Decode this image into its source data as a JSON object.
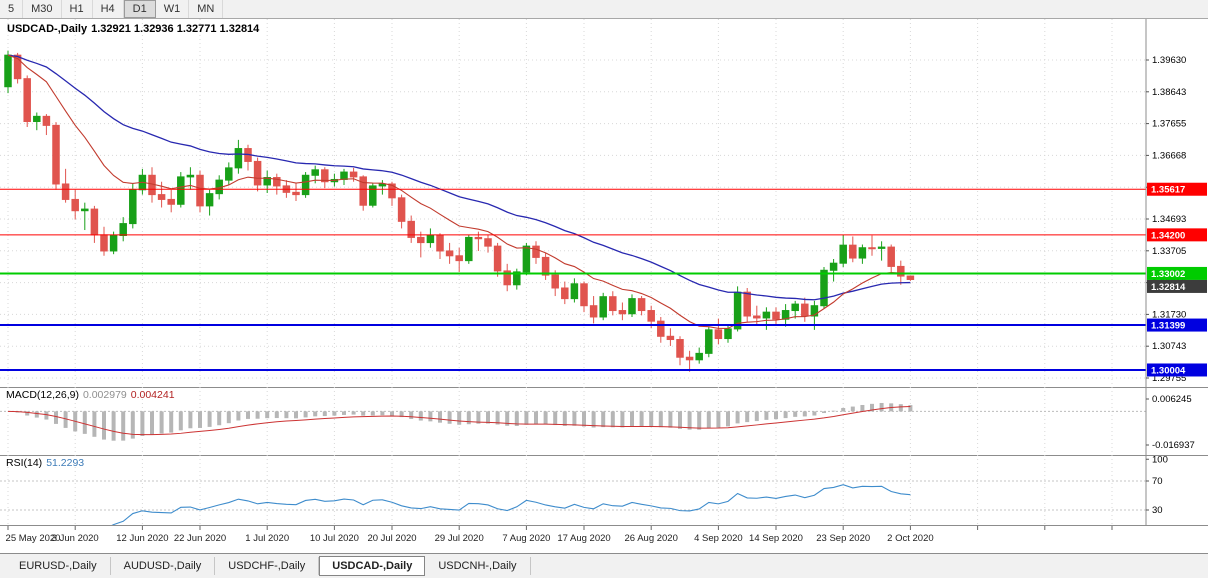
{
  "toolbar": {
    "timeframes": [
      "5",
      "M30",
      "H1",
      "H4",
      "D1",
      "W1",
      "MN"
    ],
    "active": "D1"
  },
  "chart": {
    "symbol_label": "USDCAD-,Daily",
    "ohlc_text": "1.32921 1.32936 1.32771 1.32814",
    "open": "1.32921",
    "high": "1.32936",
    "low": "1.32771",
    "close": "1.32814"
  },
  "macd": {
    "name": "MACD(12,26,9)",
    "value_main": "0.002979",
    "value_signal": "0.004241"
  },
  "rsi": {
    "name": "RSI(14)",
    "value": "51.2293"
  },
  "tabs": [
    {
      "label": "EURUSD-,Daily",
      "active": false
    },
    {
      "label": "AUDUSD-,Daily",
      "active": false
    },
    {
      "label": "USDCHF-,Daily",
      "active": false
    },
    {
      "label": "USDCAD-,Daily",
      "active": true
    },
    {
      "label": "USDCNH-,Daily",
      "active": false
    }
  ],
  "chart_data": {
    "type": "candlestick",
    "title": "USDCAD-,Daily",
    "symbol": "USDCAD",
    "timeframe": "Daily",
    "price_axis": [
      "1.39630",
      "1.38643",
      "1.37655",
      "1.36668",
      "1.35680",
      "1.34693",
      "1.33705",
      "1.32718",
      "1.31730",
      "1.30743",
      "1.29755"
    ],
    "time_labels": [
      [
        "25 May 2020",
        0
      ],
      [
        "3 Jun 2020",
        7
      ],
      [
        "12 Jun 2020",
        14
      ],
      [
        "22 Jun 2020",
        20
      ],
      [
        "1 Jul 2020",
        27
      ],
      [
        "10 Jul 2020",
        34
      ],
      [
        "20 Jul 2020",
        40
      ],
      [
        "29 Jul 2020",
        47
      ],
      [
        "7 Aug 2020",
        54
      ],
      [
        "17 Aug 2020",
        60
      ],
      [
        "26 Aug 2020",
        67
      ],
      [
        "4 Sep 2020",
        74
      ],
      [
        "14 Sep 2020",
        80
      ],
      [
        "23 Sep 2020",
        87
      ],
      [
        "2 Oct 2020",
        94
      ]
    ],
    "hlines": [
      {
        "price": 1.35617,
        "label": "1.35617",
        "color": "#ff0000",
        "width": 1
      },
      {
        "price": 1.342,
        "label": "1.34200",
        "color": "#ff0000",
        "width": 1
      },
      {
        "price": 1.33002,
        "label": "1.33002",
        "color": "#00cc00",
        "width": 2
      },
      {
        "price": 1.31399,
        "label": "1.31399",
        "color": "#0000e0",
        "width": 2
      },
      {
        "price": 1.30004,
        "label": "1.30004",
        "color": "#0000e0",
        "width": 2
      }
    ],
    "current": {
      "price": 1.32814,
      "label": "1.32814",
      "color": "#3c3c3c"
    },
    "indicators": {
      "macd": {
        "fast": 12,
        "slow": 26,
        "signal": 9,
        "value": 0.002979,
        "signal_value": 0.004241
      },
      "rsi": {
        "period": 14,
        "value": 51.2293
      }
    },
    "macd_axis": {
      "max": 0.006245,
      "min": -0.016937,
      "labels": [
        {
          "v": 0.006245,
          "t": "0.006245"
        },
        {
          "v": -0.016937,
          "t": "-0.016937"
        }
      ]
    },
    "rsi_axis": {
      "labels": [
        {
          "v": 100,
          "t": "100"
        },
        {
          "v": 70,
          "t": "70"
        },
        {
          "v": 30,
          "t": "30"
        }
      ],
      "levels": [
        70,
        30
      ]
    },
    "colors": {
      "up": "#18a018",
      "down": "#e0544e",
      "ma_fast": "#c23b2e",
      "ma_slow": "#2828b0",
      "macd_hist": "#b6b6b6",
      "macd_signal": "#cc3333",
      "rsi_line": "#3e8ccc",
      "grid": "#d8d8d8",
      "axis_line": "#8c8c8c"
    },
    "candles": [
      [
        1.388,
        1.3992,
        1.386,
        1.3978
      ],
      [
        1.3978,
        1.3985,
        1.389,
        1.3905
      ],
      [
        1.3905,
        1.3915,
        1.3755,
        1.3772
      ],
      [
        1.3772,
        1.38,
        1.3745,
        1.3788
      ],
      [
        1.3788,
        1.3795,
        1.373,
        1.376
      ],
      [
        1.376,
        1.377,
        1.356,
        1.3578
      ],
      [
        1.3578,
        1.3625,
        1.352,
        1.353
      ],
      [
        1.353,
        1.356,
        1.3468,
        1.3495
      ],
      [
        1.3495,
        1.352,
        1.3435,
        1.35
      ],
      [
        1.35,
        1.351,
        1.3395,
        1.342
      ],
      [
        1.342,
        1.3445,
        1.3355,
        1.337
      ],
      [
        1.337,
        1.343,
        1.336,
        1.3418
      ],
      [
        1.3418,
        1.3475,
        1.34,
        1.3455
      ],
      [
        1.3455,
        1.358,
        1.344,
        1.356
      ],
      [
        1.356,
        1.3625,
        1.3545,
        1.3605
      ],
      [
        1.3605,
        1.363,
        1.352,
        1.3545
      ],
      [
        1.3545,
        1.3585,
        1.3505,
        1.353
      ],
      [
        1.353,
        1.356,
        1.349,
        1.3515
      ],
      [
        1.3515,
        1.3615,
        1.3505,
        1.36
      ],
      [
        1.36,
        1.363,
        1.356,
        1.3605
      ],
      [
        1.3605,
        1.362,
        1.349,
        1.351
      ],
      [
        1.351,
        1.356,
        1.348,
        1.3548
      ],
      [
        1.3548,
        1.3605,
        1.353,
        1.359
      ],
      [
        1.359,
        1.3645,
        1.3575,
        1.3628
      ],
      [
        1.3628,
        1.3715,
        1.361,
        1.3688
      ],
      [
        1.3688,
        1.37,
        1.362,
        1.3648
      ],
      [
        1.3648,
        1.366,
        1.3555,
        1.3575
      ],
      [
        1.3575,
        1.362,
        1.355,
        1.3598
      ],
      [
        1.3598,
        1.361,
        1.3545,
        1.3572
      ],
      [
        1.3572,
        1.359,
        1.3535,
        1.3552
      ],
      [
        1.3552,
        1.358,
        1.3525,
        1.3545
      ],
      [
        1.3545,
        1.3615,
        1.3535,
        1.3605
      ],
      [
        1.3605,
        1.3635,
        1.358,
        1.3622
      ],
      [
        1.3622,
        1.363,
        1.3565,
        1.3585
      ],
      [
        1.3585,
        1.361,
        1.357,
        1.3592
      ],
      [
        1.3592,
        1.3625,
        1.3575,
        1.3615
      ],
      [
        1.3615,
        1.3628,
        1.3585,
        1.36
      ],
      [
        1.36,
        1.3605,
        1.3495,
        1.3512
      ],
      [
        1.3512,
        1.358,
        1.3505,
        1.3572
      ],
      [
        1.3572,
        1.359,
        1.3545,
        1.3578
      ],
      [
        1.3578,
        1.3585,
        1.351,
        1.3535
      ],
      [
        1.3535,
        1.3545,
        1.344,
        1.3462
      ],
      [
        1.3462,
        1.348,
        1.3395,
        1.3412
      ],
      [
        1.3412,
        1.343,
        1.335,
        1.3396
      ],
      [
        1.3396,
        1.344,
        1.338,
        1.3418
      ],
      [
        1.3418,
        1.3425,
        1.3345,
        1.337
      ],
      [
        1.337,
        1.3395,
        1.333,
        1.3355
      ],
      [
        1.3355,
        1.338,
        1.3305,
        1.334
      ],
      [
        1.334,
        1.342,
        1.333,
        1.3412
      ],
      [
        1.3412,
        1.343,
        1.337,
        1.3408
      ],
      [
        1.3408,
        1.342,
        1.3365,
        1.3385
      ],
      [
        1.3385,
        1.3395,
        1.329,
        1.3308
      ],
      [
        1.3308,
        1.333,
        1.3245,
        1.3265
      ],
      [
        1.3265,
        1.3315,
        1.325,
        1.3305
      ],
      [
        1.3305,
        1.3395,
        1.3295,
        1.3385
      ],
      [
        1.3385,
        1.34,
        1.333,
        1.335
      ],
      [
        1.335,
        1.3365,
        1.328,
        1.3295
      ],
      [
        1.3295,
        1.331,
        1.323,
        1.3255
      ],
      [
        1.3255,
        1.3275,
        1.3205,
        1.3222
      ],
      [
        1.3222,
        1.3285,
        1.321,
        1.3268
      ],
      [
        1.3268,
        1.3275,
        1.318,
        1.32
      ],
      [
        1.32,
        1.323,
        1.3145,
        1.3165
      ],
      [
        1.3165,
        1.324,
        1.3155,
        1.3228
      ],
      [
        1.3228,
        1.3245,
        1.317,
        1.3185
      ],
      [
        1.3185,
        1.321,
        1.3155,
        1.3175
      ],
      [
        1.3175,
        1.3235,
        1.3165,
        1.3222
      ],
      [
        1.3222,
        1.323,
        1.317,
        1.3185
      ],
      [
        1.3185,
        1.32,
        1.313,
        1.3152
      ],
      [
        1.3152,
        1.3165,
        1.3085,
        1.3105
      ],
      [
        1.3105,
        1.313,
        1.3075,
        1.3095
      ],
      [
        1.3095,
        1.3105,
        1.3015,
        1.304
      ],
      [
        1.304,
        1.306,
        1.2995,
        1.3032
      ],
      [
        1.3032,
        1.307,
        1.302,
        1.3052
      ],
      [
        1.3052,
        1.3135,
        1.304,
        1.3125
      ],
      [
        1.3125,
        1.316,
        1.308,
        1.3098
      ],
      [
        1.3098,
        1.314,
        1.3085,
        1.3128
      ],
      [
        1.3128,
        1.326,
        1.312,
        1.3242
      ],
      [
        1.3242,
        1.3255,
        1.315,
        1.3168
      ],
      [
        1.3168,
        1.32,
        1.314,
        1.3162
      ],
      [
        1.3162,
        1.3195,
        1.3125,
        1.318
      ],
      [
        1.318,
        1.3195,
        1.314,
        1.3158
      ],
      [
        1.3158,
        1.3205,
        1.3135,
        1.3185
      ],
      [
        1.3185,
        1.3215,
        1.316,
        1.3205
      ],
      [
        1.3205,
        1.3225,
        1.315,
        1.3168
      ],
      [
        1.3168,
        1.3215,
        1.3125,
        1.32
      ],
      [
        1.32,
        1.332,
        1.319,
        1.331
      ],
      [
        1.331,
        1.3345,
        1.3275,
        1.3332
      ],
      [
        1.3332,
        1.342,
        1.332,
        1.3388
      ],
      [
        1.3388,
        1.3415,
        1.3335,
        1.3348
      ],
      [
        1.3348,
        1.339,
        1.333,
        1.338
      ],
      [
        1.338,
        1.3418,
        1.3355,
        1.3378
      ],
      [
        1.3378,
        1.34,
        1.334,
        1.3382
      ],
      [
        1.3382,
        1.339,
        1.33,
        1.3322
      ],
      [
        1.3322,
        1.334,
        1.3265,
        1.3292
      ],
      [
        1.32921,
        1.32936,
        1.32771,
        1.32814
      ]
    ]
  }
}
